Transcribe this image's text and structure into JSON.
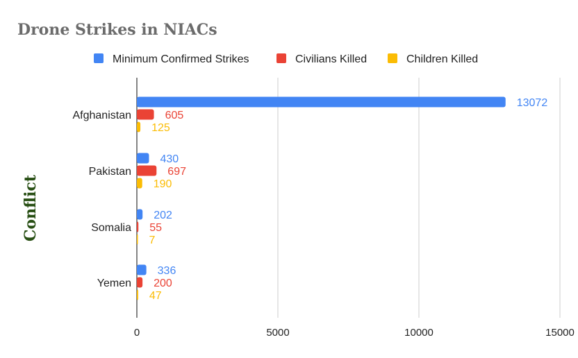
{
  "chart_data": {
    "type": "bar",
    "orientation": "horizontal",
    "title": "Drone Strikes in NIACs",
    "ylabel": "Conflict",
    "xlabel": "",
    "categories": [
      "Afghanistan",
      "Pakistan",
      "Somalia",
      "Yemen"
    ],
    "series": [
      {
        "name": "Minimum Confirmed Strikes",
        "color": "#4285f4",
        "values": [
          13072,
          430,
          202,
          336
        ]
      },
      {
        "name": "Civilians Killed",
        "color": "#ea4335",
        "values": [
          605,
          697,
          55,
          200
        ]
      },
      {
        "name": "Children Killed",
        "color": "#fbbc04",
        "values": [
          125,
          190,
          7,
          47
        ]
      }
    ],
    "xlim": [
      0,
      15000
    ],
    "xticks": [
      0,
      5000,
      10000,
      15000
    ],
    "grid": true,
    "legend_position": "top"
  }
}
